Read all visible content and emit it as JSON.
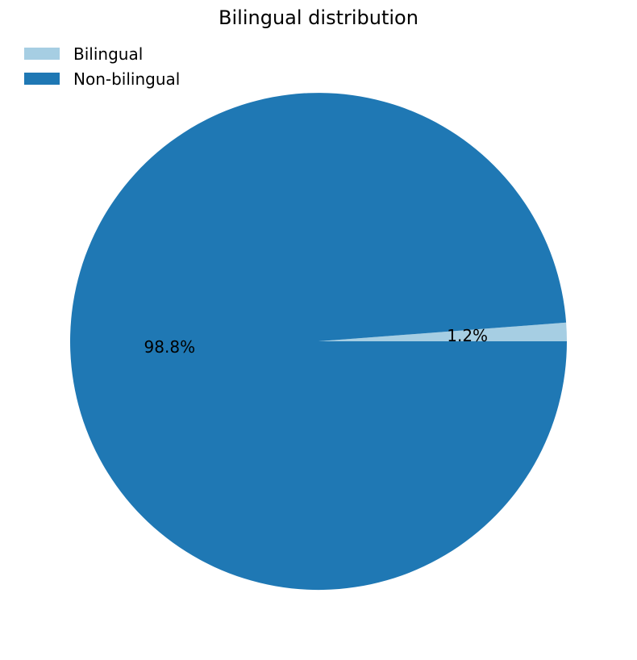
{
  "chart_data": {
    "type": "pie",
    "title": "Bilingual distribution",
    "categories": [
      "Bilingual",
      "Non-bilingual"
    ],
    "values": [
      1.2,
      98.8
    ],
    "labels": [
      "1.2%",
      "98.8%"
    ],
    "colors": [
      "#a6cee3",
      "#1f78b4"
    ],
    "start_angle_deg": 0,
    "direction": "counterclockwise",
    "legend": {
      "placement": "top-left",
      "entries": [
        "Bilingual",
        "Non-bilingual"
      ]
    }
  }
}
